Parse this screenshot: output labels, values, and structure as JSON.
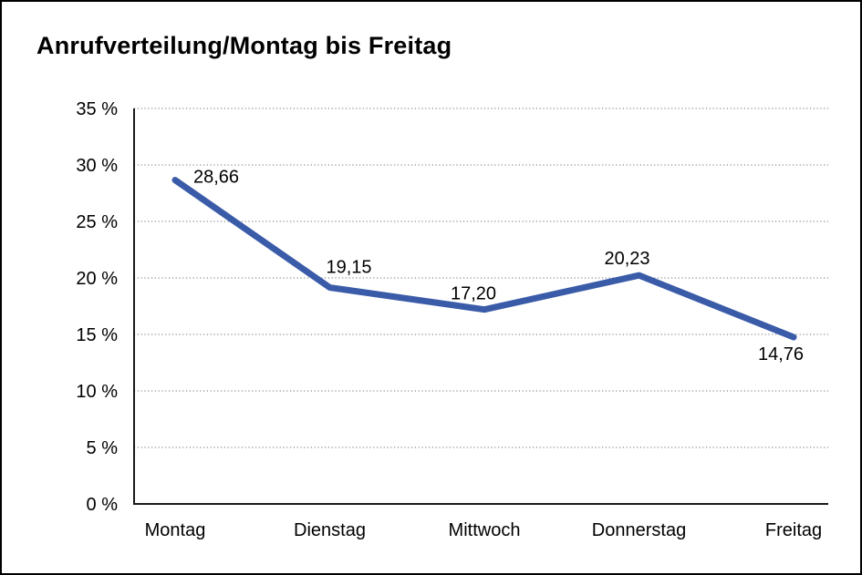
{
  "window": {
    "title": "Anrufverteilung/Montag bis Freitag"
  },
  "chart_data": {
    "type": "line",
    "title": "Anrufverteilung/Montag bis Freitag",
    "categories": [
      "Montag",
      "Dienstag",
      "Mittwoch",
      "Donnerstag",
      "Freitag"
    ],
    "values": [
      28.66,
      19.15,
      17.2,
      20.23,
      14.76
    ],
    "point_labels": [
      "28,66",
      "19,15",
      "17,20",
      "20,23",
      "14,76"
    ],
    "y_ticks": [
      0,
      5,
      10,
      15,
      20,
      25,
      30,
      35
    ],
    "y_tick_labels": [
      "0 %",
      "5 %",
      "10 %",
      "15 %",
      "20 %",
      "25 %",
      "30 %",
      "35 %"
    ],
    "ylim": [
      0,
      35
    ],
    "xlabel": "",
    "ylabel": "",
    "grid": "horizontal-dotted",
    "legend": "none",
    "line_color": "#3A5BA8"
  },
  "colors": {
    "line": "#3A5BA8",
    "grid": "#8C8C8C",
    "axis": "#1A1A1A",
    "text": "#000000",
    "background": "#FFFFFF",
    "frame_border": "#000000"
  }
}
